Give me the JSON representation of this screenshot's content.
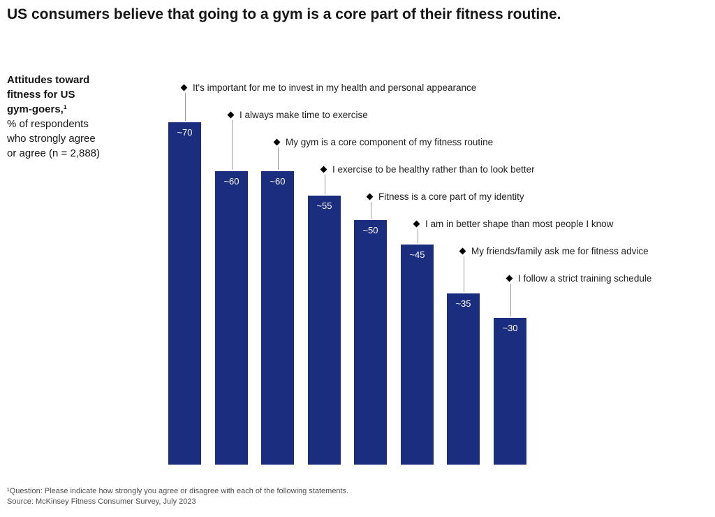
{
  "title": "US consumers believe that going to a gym is a core part of their fitness routine.",
  "sidebar": {
    "lines": [
      "Attitudes toward",
      "fitness for US",
      "gym-goers,¹",
      "% of respondents",
      "who strongly agree",
      "or agree (n = 2,888)"
    ]
  },
  "chart_data": {
    "type": "bar",
    "title": "Attitudes toward fitness for US gym-goers",
    "xlabel": "",
    "ylabel": "% of respondents who strongly agree or agree (n = 2,888)",
    "ylim": [
      0,
      75
    ],
    "grid": false,
    "legend": false,
    "bar_color": "#1b2d7f",
    "marker": "diamond",
    "categories": [
      "It's important for me to invest in my health and personal appearance",
      "I always make time to exercise",
      "My gym is a core component of my fitness routine",
      "I exercise to be healthy rather than to look better",
      "Fitness is a core part of my identity",
      "I am in better shape than most people I know",
      "My friends/family ask me for fitness advice",
      "I follow a strict training schedule"
    ],
    "values": [
      70,
      60,
      60,
      55,
      50,
      45,
      35,
      30
    ],
    "value_labels": [
      "~70",
      "~60",
      "~60",
      "~55",
      "~50",
      "~45",
      "~35",
      "~30"
    ]
  },
  "footnotes": [
    "¹Question: Please indicate how strongly you agree or disagree with each of the following statements.",
    "Source: McKinsey Fitness Consumer Survey, July 2023"
  ]
}
